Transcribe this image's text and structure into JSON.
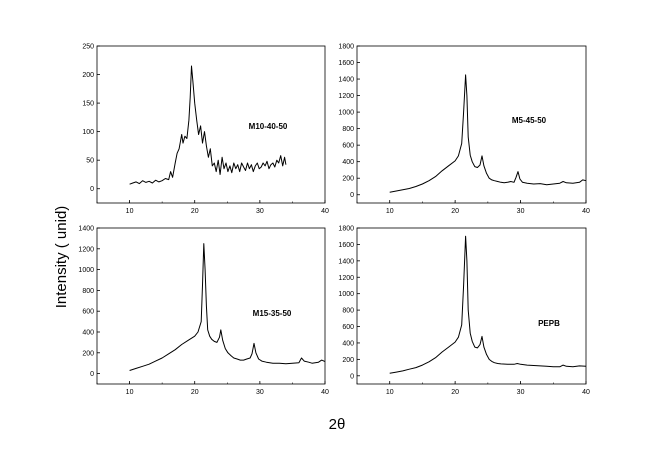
{
  "figure": {
    "ylabel": "Intensity ( unid)",
    "xlabel": "2θ"
  },
  "chart_data": [
    {
      "type": "line",
      "label": "M10-40-50",
      "xlim": [
        5,
        40
      ],
      "ylim": [
        -25,
        250
      ],
      "xticks": [
        10,
        20,
        30,
        40
      ],
      "yticks": [
        0,
        50,
        100,
        150,
        200,
        250
      ],
      "x": [
        10,
        10.5,
        11,
        11.5,
        12,
        12.5,
        13,
        13.5,
        14,
        14.5,
        15,
        15.5,
        16,
        16.3,
        16.6,
        17,
        17.3,
        17.6,
        18,
        18.2,
        18.5,
        18.8,
        19.1,
        19.3,
        19.5,
        19.7,
        20,
        20.3,
        20.6,
        20.9,
        21.2,
        21.5,
        21.8,
        22.1,
        22.4,
        22.7,
        23,
        23.3,
        23.6,
        23.9,
        24.2,
        24.5,
        24.8,
        25.1,
        25.4,
        25.7,
        26,
        26.3,
        26.6,
        26.9,
        27.2,
        27.5,
        27.8,
        28.1,
        28.4,
        28.7,
        29,
        29.3,
        29.6,
        29.9,
        30.2,
        30.5,
        30.8,
        31.1,
        31.4,
        31.7,
        32,
        32.3,
        32.6,
        32.9,
        33.2,
        33.5,
        33.8,
        34
      ],
      "y": [
        8,
        10,
        12,
        9,
        14,
        11,
        13,
        10,
        15,
        12,
        14,
        18,
        16,
        30,
        20,
        45,
        62,
        70,
        95,
        80,
        92,
        88,
        120,
        160,
        215,
        190,
        150,
        120,
        95,
        110,
        80,
        100,
        75,
        55,
        70,
        40,
        45,
        30,
        50,
        25,
        55,
        35,
        45,
        30,
        40,
        28,
        45,
        35,
        42,
        30,
        45,
        38,
        32,
        45,
        35,
        42,
        30,
        40,
        45,
        35,
        38,
        45,
        40,
        48,
        35,
        42,
        45,
        38,
        50,
        45,
        58,
        40,
        55,
        42
      ]
    },
    {
      "type": "line",
      "label": "M5-45-50",
      "xlim": [
        5,
        40
      ],
      "ylim": [
        -100,
        1800
      ],
      "xticks": [
        10,
        20,
        30,
        40
      ],
      "yticks": [
        0,
        200,
        400,
        600,
        800,
        1000,
        1200,
        1400,
        1600,
        1800
      ],
      "x": [
        10,
        11,
        12,
        13,
        14,
        15,
        16,
        17,
        18,
        19,
        20,
        20.5,
        21,
        21.3,
        21.6,
        21.8,
        22,
        22.3,
        22.6,
        23,
        23.4,
        23.8,
        24.1,
        24.4,
        24.8,
        25.2,
        25.6,
        26,
        26.5,
        27,
        27.5,
        28,
        28.5,
        29,
        29.3,
        29.6,
        29.9,
        30.3,
        31,
        32,
        33,
        34,
        35,
        36,
        36.5,
        37,
        38,
        39,
        39.5,
        40
      ],
      "y": [
        30,
        45,
        60,
        75,
        100,
        130,
        170,
        220,
        290,
        350,
        410,
        470,
        620,
        1000,
        1450,
        1200,
        700,
        480,
        400,
        340,
        330,
        360,
        470,
        350,
        260,
        200,
        180,
        170,
        160,
        150,
        145,
        150,
        160,
        150,
        210,
        280,
        190,
        150,
        140,
        130,
        135,
        120,
        130,
        140,
        160,
        145,
        140,
        150,
        180,
        170
      ]
    },
    {
      "type": "line",
      "label": "M15-35-50",
      "xlim": [
        5,
        40
      ],
      "ylim": [
        -100,
        1400
      ],
      "xticks": [
        10,
        20,
        30,
        40
      ],
      "yticks": [
        0,
        200,
        400,
        600,
        800,
        1000,
        1200,
        1400
      ],
      "x": [
        10,
        11,
        12,
        13,
        14,
        15,
        16,
        17,
        18,
        19,
        20,
        20.5,
        21,
        21.2,
        21.4,
        21.6,
        21.8,
        22,
        22.3,
        22.6,
        23,
        23.4,
        23.8,
        24,
        24.3,
        24.7,
        25.1,
        25.6,
        26,
        26.5,
        27,
        27.5,
        28,
        28.5,
        28.8,
        29.1,
        29.4,
        29.8,
        30.3,
        31,
        32,
        33,
        34,
        35,
        36,
        36.4,
        36.8,
        37.5,
        38,
        39,
        39.5,
        40
      ],
      "y": [
        30,
        50,
        70,
        90,
        120,
        150,
        190,
        230,
        280,
        320,
        360,
        400,
        500,
        850,
        1250,
        1000,
        650,
        420,
        360,
        330,
        310,
        300,
        350,
        420,
        320,
        240,
        200,
        170,
        150,
        140,
        130,
        130,
        140,
        150,
        190,
        290,
        200,
        140,
        120,
        110,
        100,
        100,
        95,
        100,
        105,
        150,
        120,
        110,
        100,
        110,
        130,
        115
      ]
    },
    {
      "type": "line",
      "label": "PEPB",
      "xlim": [
        5,
        40
      ],
      "ylim": [
        -100,
        1800
      ],
      "xticks": [
        10,
        20,
        30,
        40
      ],
      "yticks": [
        0,
        200,
        400,
        600,
        800,
        1000,
        1200,
        1400,
        1600,
        1800
      ],
      "x": [
        10,
        11,
        12,
        13,
        14,
        15,
        16,
        17,
        18,
        19,
        20,
        20.5,
        21,
        21.3,
        21.6,
        21.8,
        22,
        22.3,
        22.6,
        23,
        23.4,
        23.8,
        24.1,
        24.4,
        24.8,
        25.2,
        25.6,
        26,
        26.5,
        27,
        28,
        29,
        29.5,
        30,
        31,
        32,
        33,
        34,
        35,
        36,
        36.5,
        37,
        38,
        39,
        40
      ],
      "y": [
        30,
        45,
        60,
        80,
        100,
        130,
        170,
        220,
        290,
        350,
        410,
        470,
        620,
        1100,
        1700,
        1400,
        800,
        520,
        420,
        350,
        340,
        380,
        480,
        350,
        260,
        200,
        175,
        160,
        150,
        145,
        140,
        140,
        150,
        140,
        130,
        125,
        120,
        115,
        110,
        110,
        130,
        115,
        110,
        120,
        115
      ]
    }
  ]
}
